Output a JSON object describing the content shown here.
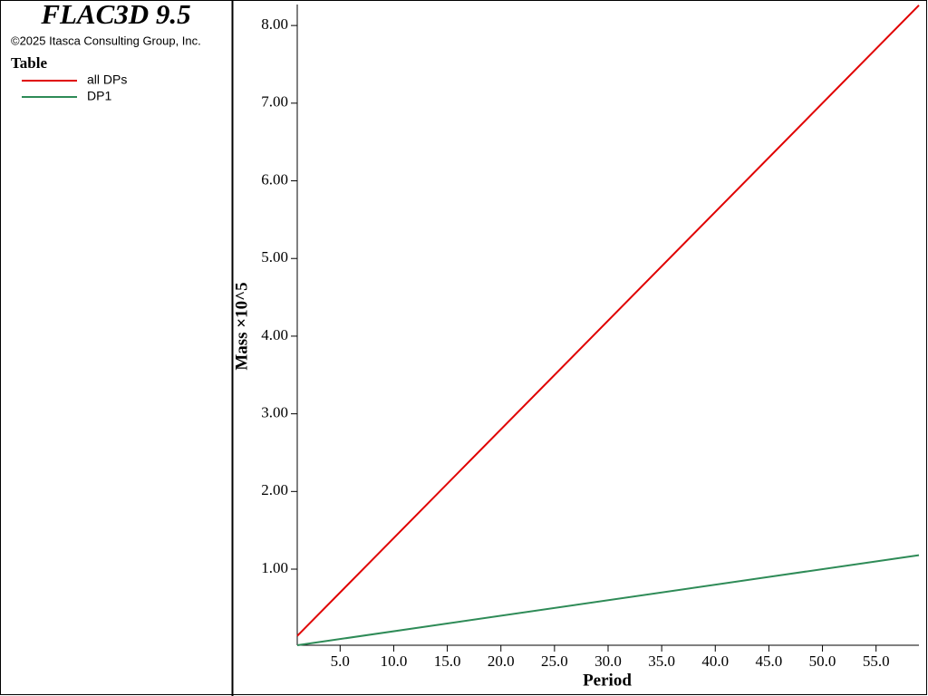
{
  "header": {
    "title": "FLAC3D 9.5",
    "copyright": "©2025 Itasca Consulting Group, Inc.",
    "legend_title": "Table"
  },
  "chart_data": {
    "type": "line",
    "x_label": "Period",
    "y_label": "Mass ×10^5",
    "x": [
      1,
      59
    ],
    "series": [
      {
        "name": "all DPs",
        "color": "#e00000",
        "values": [
          0.14,
          8.26
        ]
      },
      {
        "name": "DP1",
        "color": "#2e8b57",
        "values": [
          0.02,
          1.18
        ]
      }
    ],
    "xlim": [
      1,
      59
    ],
    "ylim": [
      0.02,
      8.27
    ],
    "xticks": [
      {
        "value": 5,
        "label": "5.0"
      },
      {
        "value": 10,
        "label": "10.0"
      },
      {
        "value": 15,
        "label": "15.0"
      },
      {
        "value": 20,
        "label": "20.0"
      },
      {
        "value": 25,
        "label": "25.0"
      },
      {
        "value": 30,
        "label": "30.0"
      },
      {
        "value": 35,
        "label": "35.0"
      },
      {
        "value": 40,
        "label": "40.0"
      },
      {
        "value": 45,
        "label": "45.0"
      },
      {
        "value": 50,
        "label": "50.0"
      },
      {
        "value": 55,
        "label": "55.0"
      }
    ],
    "yticks": [
      {
        "value": 1,
        "label": "1.00"
      },
      {
        "value": 2,
        "label": "2.00"
      },
      {
        "value": 3,
        "label": "3.00"
      },
      {
        "value": 4,
        "label": "4.00"
      },
      {
        "value": 5,
        "label": "5.00"
      },
      {
        "value": 6,
        "label": "6.00"
      },
      {
        "value": 7,
        "label": "7.00"
      },
      {
        "value": 8,
        "label": "8.00"
      }
    ],
    "grid": false
  }
}
